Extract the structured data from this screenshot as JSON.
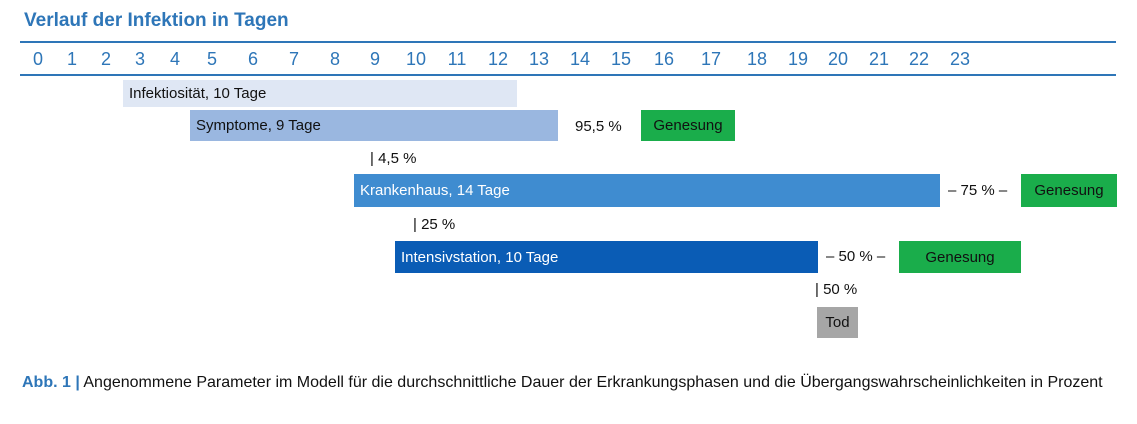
{
  "title": "Verlauf der Infektion in Tagen",
  "days": [
    "0",
    "1",
    "2",
    "3",
    "4",
    "5",
    "6",
    "7",
    "8",
    "9",
    "10",
    "11",
    "12",
    "13",
    "14",
    "15",
    "16",
    "17",
    "18",
    "19",
    "20",
    "21",
    "22",
    "23"
  ],
  "colors": {
    "accent": "#2e76b8",
    "bar_infektiositaet": "#dfe7f4",
    "bar_symptome": "#9ab7e0",
    "bar_krankenhaus": "#3f8cd0",
    "bar_intensiv": "#0a5cb5",
    "genesung": "#1aad4b",
    "tod": "#a6a6a6"
  },
  "bars": {
    "infektiositaet": "Infektiosität, 10 Tage",
    "symptome": "Symptome, 9 Tage",
    "krankenhaus": "Krankenhaus, 14 Tage",
    "intensiv": "Intensivstation, 10 Tage"
  },
  "labels": {
    "symptome_genesung_pct": "95,5 %",
    "krankenhaus_pct": "| 4,5 %",
    "krankenhaus_genesung_pct": "– 75 % –",
    "intensiv_pct": "| 25 %",
    "intensiv_genesung_pct": "– 50 % –",
    "tod_pct": "| 50 %"
  },
  "outcomes": {
    "genesung": "Genesung",
    "tod": "Tod"
  },
  "caption": {
    "prefix": "Abb. 1 |",
    "text": "Angenommene Parameter im Modell für die durchschnittliche Dauer der Erkrankungsphasen und die Übergangswahr­scheinlichkeiten in Prozent"
  }
}
